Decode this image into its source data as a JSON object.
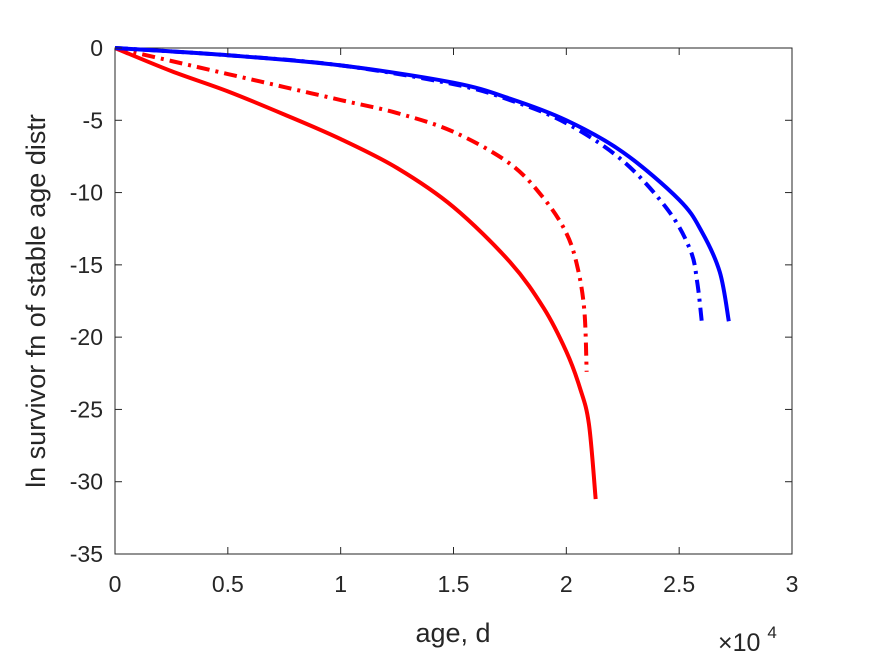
{
  "chart_data": {
    "type": "line",
    "xlabel": "age, d",
    "ylabel": "ln survivor fn of stable age distr",
    "x_exponent_label": {
      "base": "×10",
      "power": "4"
    },
    "xlim": [
      0,
      3
    ],
    "ylim": [
      -35,
      0
    ],
    "x_ticks": [
      0,
      0.5,
      1,
      1.5,
      2,
      2.5,
      3
    ],
    "x_tick_labels": [
      "0",
      "0.5",
      "1",
      "1.5",
      "2",
      "2.5",
      "3"
    ],
    "y_ticks": [
      0,
      -5,
      -10,
      -15,
      -20,
      -25,
      -30,
      -35
    ],
    "y_tick_labels": [
      "0",
      "-5",
      "-10",
      "-15",
      "-20",
      "-25",
      "-30",
      "-35"
    ],
    "grid": false,
    "legend": false,
    "series": [
      {
        "color": "#ff0000",
        "line_style": "solid",
        "x": [
          0,
          0.25,
          0.5,
          0.75,
          1.0,
          1.25,
          1.5,
          1.75,
          1.9,
          2.0,
          2.06,
          2.1,
          2.13
        ],
        "y": [
          0,
          -1.6,
          -3.0,
          -4.6,
          -6.3,
          -8.3,
          -11.0,
          -14.8,
          -18.0,
          -21.0,
          -23.5,
          -26.0,
          -31.2
        ]
      },
      {
        "color": "#ff0000",
        "line_style": "dashdot",
        "x": [
          0,
          0.25,
          0.5,
          0.75,
          1.0,
          1.25,
          1.5,
          1.75,
          1.9,
          2.0,
          2.05,
          2.08,
          2.09
        ],
        "y": [
          0,
          -0.9,
          -1.8,
          -2.7,
          -3.6,
          -4.5,
          -5.8,
          -8.0,
          -10.4,
          -12.8,
          -15.2,
          -18.2,
          -22.4
        ]
      },
      {
        "color": "#0000ff",
        "line_style": "solid",
        "x": [
          0,
          0.5,
          1.0,
          1.5,
          1.75,
          2.0,
          2.25,
          2.5,
          2.6,
          2.68,
          2.72
        ],
        "y": [
          0,
          -0.5,
          -1.2,
          -2.4,
          -3.5,
          -5.0,
          -7.2,
          -10.5,
          -12.7,
          -15.5,
          -18.9
        ]
      },
      {
        "color": "#0000ff",
        "line_style": "dashdot",
        "x": [
          0,
          0.5,
          1.0,
          1.5,
          1.75,
          2.0,
          2.25,
          2.45,
          2.55,
          2.58,
          2.6
        ],
        "y": [
          0,
          -0.5,
          -1.2,
          -2.5,
          -3.6,
          -5.2,
          -7.8,
          -11.2,
          -14.0,
          -16.2,
          -18.9
        ]
      }
    ]
  }
}
